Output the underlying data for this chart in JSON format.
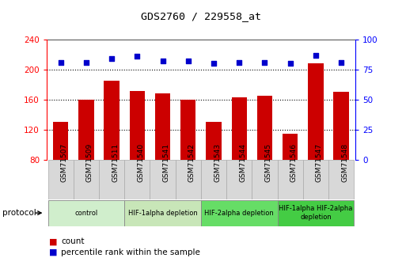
{
  "title": "GDS2760 / 229558_at",
  "samples": [
    "GSM71507",
    "GSM71509",
    "GSM71511",
    "GSM71540",
    "GSM71541",
    "GSM71542",
    "GSM71543",
    "GSM71544",
    "GSM71545",
    "GSM71546",
    "GSM71547",
    "GSM71548"
  ],
  "counts": [
    130,
    160,
    185,
    172,
    168,
    160,
    130,
    163,
    165,
    115,
    208,
    170
  ],
  "percentiles": [
    81,
    81,
    84,
    86,
    82,
    82,
    80,
    81,
    81,
    80,
    87,
    81
  ],
  "bar_color": "#cc0000",
  "dot_color": "#0000cc",
  "ymin": 80,
  "ymax": 240,
  "yticks": [
    80,
    120,
    160,
    200,
    240
  ],
  "y2min": 0,
  "y2max": 100,
  "y2ticks": [
    0,
    25,
    50,
    75,
    100
  ],
  "grid_lines": [
    120,
    160,
    200
  ],
  "groups": [
    {
      "label": "control",
      "start": 0,
      "end": 3,
      "color": "#d0eecc"
    },
    {
      "label": "HIF-1alpha depletion",
      "start": 3,
      "end": 6,
      "color": "#c8e6b8"
    },
    {
      "label": "HIF-2alpha depletion",
      "start": 6,
      "end": 9,
      "color": "#66dd66"
    },
    {
      "label": "HIF-1alpha HIF-2alpha\ndepletion",
      "start": 9,
      "end": 12,
      "color": "#44cc44"
    }
  ],
  "protocol_label": "protocol",
  "legend_count_label": "count",
  "legend_percentile_label": "percentile rank within the sample",
  "tick_area_color": "#d8d8d8",
  "tick_border_color": "#aaaaaa"
}
